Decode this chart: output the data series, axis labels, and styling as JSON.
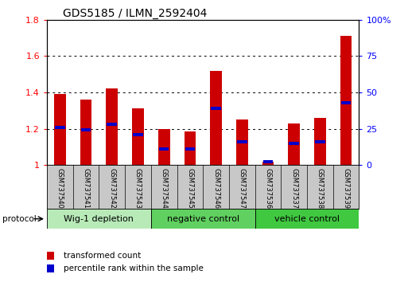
{
  "title": "GDS5185 / ILMN_2592404",
  "samples": [
    "GSM737540",
    "GSM737541",
    "GSM737542",
    "GSM737543",
    "GSM737544",
    "GSM737545",
    "GSM737546",
    "GSM737547",
    "GSM737536",
    "GSM737537",
    "GSM737538",
    "GSM737539"
  ],
  "red_values": [
    1.39,
    1.36,
    1.42,
    1.31,
    1.2,
    1.185,
    1.52,
    1.25,
    1.02,
    1.23,
    1.26,
    1.71
  ],
  "blue_fractions": [
    0.26,
    0.24,
    0.28,
    0.21,
    0.11,
    0.11,
    0.39,
    0.16,
    0.02,
    0.15,
    0.16,
    0.43
  ],
  "groups": [
    {
      "label": "Wig-1 depletion",
      "start": 0,
      "end": 4,
      "color": "#b8eab8"
    },
    {
      "label": "negative control",
      "start": 4,
      "end": 8,
      "color": "#60d060"
    },
    {
      "label": "vehicle control",
      "start": 8,
      "end": 12,
      "color": "#40c840"
    }
  ],
  "ylim_left": [
    1.0,
    1.8
  ],
  "ylim_right": [
    0,
    100
  ],
  "yticks_left": [
    1.0,
    1.2,
    1.4,
    1.6,
    1.8
  ],
  "yticks_right": [
    0,
    25,
    50,
    75,
    100
  ],
  "ytick_labels_left": [
    "1",
    "1.2",
    "1.4",
    "1.6",
    "1.8"
  ],
  "ytick_labels_right": [
    "0",
    "25",
    "50",
    "75",
    "100%"
  ],
  "bar_color_red": "#cc0000",
  "bar_color_blue": "#0000cc",
  "bar_width": 0.45,
  "blue_bar_height": 0.018,
  "legend_red_label": "transformed count",
  "legend_blue_label": "percentile rank within the sample",
  "protocol_label": "protocol",
  "tick_label_area_color": "#c8c8c8",
  "title_fontsize": 10,
  "axis_fontsize": 8,
  "sample_fontsize": 6,
  "group_fontsize": 8
}
